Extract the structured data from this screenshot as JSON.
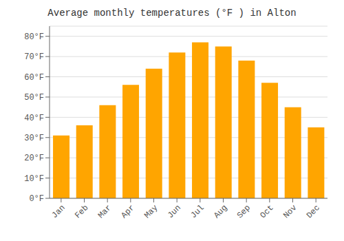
{
  "chart_data": {
    "type": "bar",
    "title": "Average monthly temperatures (°F ) in Alton",
    "categories": [
      "Jan",
      "Feb",
      "Mar",
      "Apr",
      "May",
      "Jun",
      "Jul",
      "Aug",
      "Sep",
      "Oct",
      "Nov",
      "Dec"
    ],
    "values": [
      31,
      36,
      46,
      56,
      64,
      72,
      77,
      75,
      68,
      57,
      45,
      35
    ],
    "color": "#FFA500",
    "ylim": [
      0,
      85
    ],
    "yticks": [
      {
        "value": 0,
        "label": "0°F"
      },
      {
        "value": 10,
        "label": "10°F"
      },
      {
        "value": 20,
        "label": "20°F"
      },
      {
        "value": 30,
        "label": "30°F"
      },
      {
        "value": 40,
        "label": "40°F"
      },
      {
        "value": 50,
        "label": "50°F"
      },
      {
        "value": 60,
        "label": "60°F"
      },
      {
        "value": 70,
        "label": "70°F"
      },
      {
        "value": 80,
        "label": "80°F"
      }
    ],
    "grid": true
  }
}
